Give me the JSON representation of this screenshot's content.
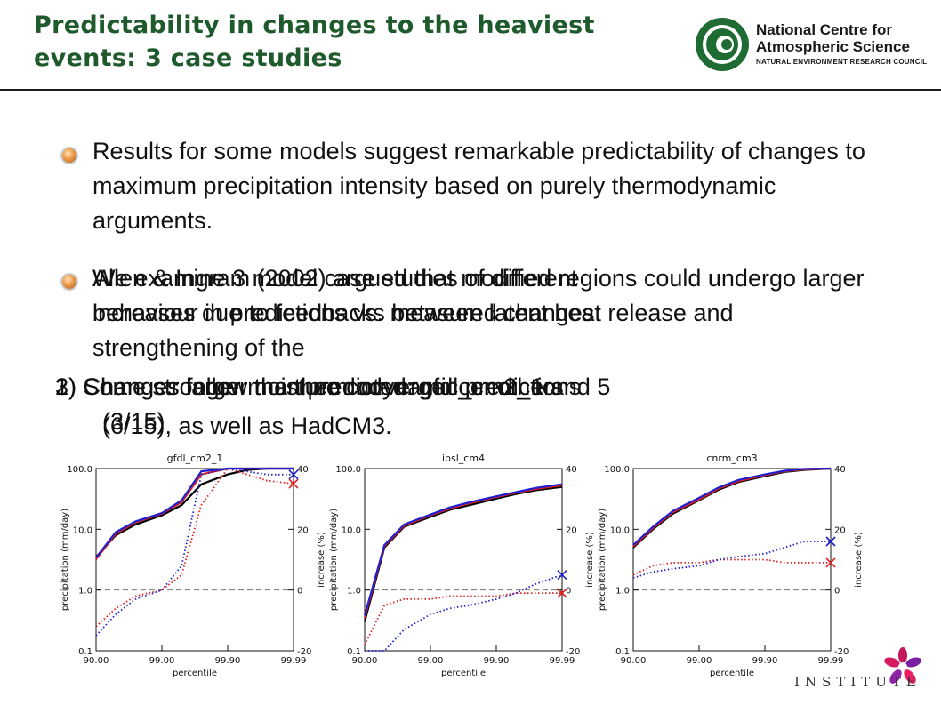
{
  "header": {
    "title": "Predictability in changes to the heaviest events: 3 case studies",
    "logo": {
      "line1": "National Centre for",
      "line2": "Atmospheric Science",
      "line3": "NATURAL ENVIRONMENT RESEARCH COUNCIL"
    }
  },
  "bullets": [
    {
      "text": "Results for some models  suggest remarkable predictability of changes to maximum precipitation intensity based on purely thermodynamic arguments."
    },
    {
      "text": "Allen & Ingram (2002) argued that modified regions could undergo larger increases due to feedbacks between latent heat release and strengthening of the"
    }
  ],
  "overlay_text": [
    "We examine 3 model case studies of different",
    "behaviour in predictions vs. measured changes:",
    "1) Changes follow the thermodynamic predictions",
    "2) Changes larger than predicted: gfdl_cm2_1 and 5",
    "3) Some stronger moisture convergence: others",
    "(3/15)",
    "(6/15), as well as HadCM3."
  ],
  "footer": {
    "institute_text": "INSTITUTE"
  },
  "colors": {
    "title_green": "#1f5a2c",
    "control": "#000000",
    "scenario_red": "#e02020",
    "scenario_blue": "#2020d0"
  },
  "chart_data": [
    {
      "type": "line",
      "title": "gfdl_cm2_1",
      "xlabel": "percentile",
      "ylabel": "precipitation (mm/day)",
      "y2label": "increase (%)",
      "x_ticks": [
        "90.00",
        "99.00",
        "99.90",
        "99.99"
      ],
      "y_ticks": [
        "0.1",
        "1.0",
        "10.0",
        "100.0"
      ],
      "y2_ticks": [
        "-20",
        "0",
        "20",
        "40"
      ],
      "y_scale": "log",
      "ylim": [
        0.1,
        100
      ],
      "y2lim": [
        -20,
        40
      ],
      "x": [
        0,
        0.3,
        0.6,
        1,
        1.3,
        1.6,
        2,
        2.3,
        2.6,
        3
      ],
      "series": [
        {
          "style": "solid",
          "color": "black",
          "values": [
            3.5,
            8,
            12,
            17,
            25,
            55,
            80,
            95,
            100,
            100
          ]
        },
        {
          "style": "solid",
          "color": "red",
          "values": [
            3.2,
            8.5,
            13,
            18,
            28,
            80,
            100,
            100,
            100,
            100
          ]
        },
        {
          "style": "solid",
          "color": "blue",
          "values": [
            3.4,
            9,
            13.5,
            18.5,
            30,
            90,
            100,
            100,
            100,
            100
          ]
        },
        {
          "style": "dotted",
          "color": "red",
          "values": [
            -12,
            -6,
            -2,
            0,
            5,
            28,
            40,
            38,
            36,
            35
          ]
        },
        {
          "style": "dotted",
          "color": "blue",
          "values": [
            -15,
            -8,
            -3,
            0,
            8,
            38,
            40,
            39,
            38,
            38
          ]
        }
      ]
    },
    {
      "type": "line",
      "title": "ipsl_cm4",
      "xlabel": "percentile",
      "ylabel": "precipitation (mm/day)",
      "y2label": "increase (%)",
      "x_ticks": [
        "90.00",
        "99.00",
        "99.90",
        "99.99"
      ],
      "y_ticks": [
        "0.1",
        "1.0",
        "10.0",
        "100.0"
      ],
      "y2_ticks": [
        "-20",
        "0",
        "20",
        "40"
      ],
      "y_scale": "log",
      "ylim": [
        0.1,
        100
      ],
      "y2lim": [
        -20,
        40
      ],
      "x": [
        0,
        0.3,
        0.6,
        1,
        1.3,
        1.6,
        2,
        2.3,
        2.6,
        3
      ],
      "series": [
        {
          "style": "solid",
          "color": "black",
          "values": [
            0.3,
            5,
            11,
            16,
            21,
            25,
            32,
            38,
            44,
            50
          ]
        },
        {
          "style": "solid",
          "color": "red",
          "values": [
            0.35,
            5.3,
            11.5,
            17,
            22,
            27,
            34,
            40,
            46,
            53
          ]
        },
        {
          "style": "solid",
          "color": "blue",
          "values": [
            0.38,
            5.5,
            12,
            17.5,
            23,
            28,
            35,
            41,
            48,
            55
          ]
        },
        {
          "style": "dotted",
          "color": "red",
          "values": [
            -18,
            -5,
            -3,
            -3,
            -2,
            -2,
            -2,
            -1,
            -1,
            -1
          ]
        },
        {
          "style": "dotted",
          "color": "blue",
          "values": [
            -20,
            -20,
            -13,
            -8,
            -6,
            -5,
            -3,
            -1,
            2,
            5
          ]
        }
      ]
    },
    {
      "type": "line",
      "title": "cnrm_cm3",
      "xlabel": "percentile",
      "ylabel": "precipitation (mm/day)",
      "y2label": "increase (%)",
      "x_ticks": [
        "90.00",
        "99.00",
        "99.90",
        "99.99"
      ],
      "y_ticks": [
        "0.1",
        "1.0",
        "10.0",
        "100.0"
      ],
      "y2_ticks": [
        "-20",
        "0",
        "20",
        "40"
      ],
      "y_scale": "log",
      "ylim": [
        0.1,
        100
      ],
      "y2lim": [
        -20,
        40
      ],
      "x": [
        0,
        0.3,
        0.6,
        1,
        1.3,
        1.6,
        2,
        2.3,
        2.6,
        3
      ],
      "series": [
        {
          "style": "solid",
          "color": "black",
          "values": [
            5,
            10,
            18,
            30,
            45,
            60,
            75,
            88,
            95,
            100
          ]
        },
        {
          "style": "solid",
          "color": "red",
          "values": [
            5.2,
            10.5,
            19,
            31,
            47,
            62,
            78,
            90,
            97,
            100
          ]
        },
        {
          "style": "solid",
          "color": "blue",
          "values": [
            5.5,
            11,
            20,
            33,
            49,
            65,
            80,
            92,
            99,
            100
          ]
        },
        {
          "style": "dotted",
          "color": "red",
          "values": [
            5,
            8,
            9,
            9,
            10,
            10,
            10,
            9,
            9,
            9
          ]
        },
        {
          "style": "dotted",
          "color": "blue",
          "values": [
            4,
            6,
            7,
            8,
            10,
            11,
            12,
            14,
            16,
            16
          ]
        }
      ]
    }
  ]
}
